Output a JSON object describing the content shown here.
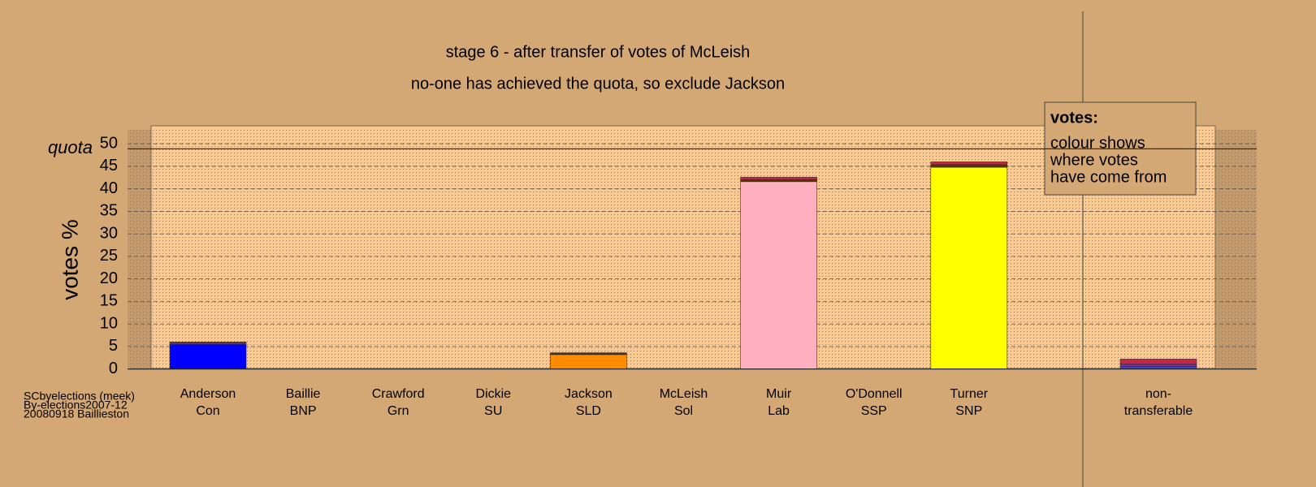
{
  "chart_data": {
    "type": "stacked-bar",
    "title": "stage 6 - after transfer of votes of McLeish",
    "subtitle": "no-one has achieved the quota, so exclude Jackson",
    "y_label": "votes %",
    "quota_label": "quota",
    "quota": 48.9,
    "legend_title": "votes:",
    "legend_lines": [
      "colour shows",
      "where votes",
      "have come from"
    ],
    "footer": [
      "SCbyelections (meek)",
      "By-elections2007-12",
      "20080918 Baillieston"
    ],
    "categories": [
      [
        "Anderson",
        "Con"
      ],
      [
        "Baillie",
        "BNP"
      ],
      [
        "Crawford",
        "Grn"
      ],
      [
        "Dickie",
        "SU"
      ],
      [
        "Jackson",
        "SLD"
      ],
      [
        "McLeish",
        "Sol"
      ],
      [
        "Muir",
        "Lab"
      ],
      [
        "O'Donnell",
        "SSP"
      ],
      [
        "Turner",
        "SNP"
      ],
      [
        "non-",
        "transferable"
      ]
    ],
    "stacks": [
      [
        {
          "color": "#0000ff",
          "value": 5.5
        },
        {
          "color": "#7030a0",
          "value": 0.3
        },
        {
          "color": "#cc2244",
          "value": 0.2
        }
      ],
      [],
      [],
      [],
      [
        {
          "color": "#ff8c00",
          "value": 3.2
        },
        {
          "color": "#553300",
          "value": 0.4
        }
      ],
      [],
      [
        {
          "color": "#ffb0c0",
          "value": 41.6
        },
        {
          "color": "#553300",
          "value": 0.5
        },
        {
          "color": "#cc2244",
          "value": 0.5
        }
      ],
      [],
      [
        {
          "color": "#ffff00",
          "value": 44.8
        },
        {
          "color": "#553300",
          "value": 0.6
        },
        {
          "color": "#cc2244",
          "value": 0.6
        }
      ],
      [
        {
          "color": "#4040c0",
          "value": 0.6
        },
        {
          "color": "#7030a0",
          "value": 0.5
        },
        {
          "color": "#cc2244",
          "value": 1.1
        }
      ]
    ],
    "ylim": [
      0,
      54
    ],
    "yticks": [
      0,
      5,
      10,
      15,
      20,
      25,
      30,
      35,
      40,
      45,
      50
    ],
    "grid": true
  }
}
